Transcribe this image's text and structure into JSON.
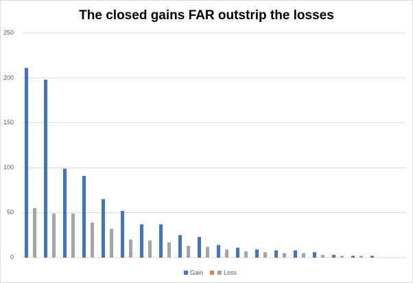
{
  "chart_data": {
    "type": "bar",
    "title": "The closed gains FAR outstrip the losses",
    "categories": [
      null,
      null,
      null,
      null,
      null,
      null,
      null,
      null,
      null,
      null,
      null,
      null,
      null,
      null,
      null,
      null,
      null,
      null,
      null,
      null
    ],
    "series": [
      {
        "name": "Gain",
        "color": "#4472c4",
        "values": [
          211,
          198,
          99,
          91,
          65,
          52,
          37,
          37,
          25,
          23,
          14,
          11,
          9,
          8,
          8,
          6,
          3,
          2,
          2,
          null
        ]
      },
      {
        "name": null,
        "color": "#ed7d31",
        "values": [
          null,
          null,
          null,
          null,
          null,
          null,
          null,
          null,
          null,
          null,
          null,
          null,
          null,
          null,
          null,
          null,
          null,
          null,
          null,
          null
        ]
      },
      {
        "name": "Loss",
        "color": "#a5a5a5",
        "values": [
          55,
          49,
          49,
          39,
          32,
          20,
          19,
          17,
          13,
          12,
          9,
          7,
          6,
          5,
          5,
          3,
          2,
          2,
          null,
          null
        ]
      }
    ],
    "ylim": [
      0,
      250
    ],
    "yticks": [
      0,
      50,
      100,
      150,
      200,
      250
    ],
    "grid": true,
    "legend": "bottom"
  }
}
